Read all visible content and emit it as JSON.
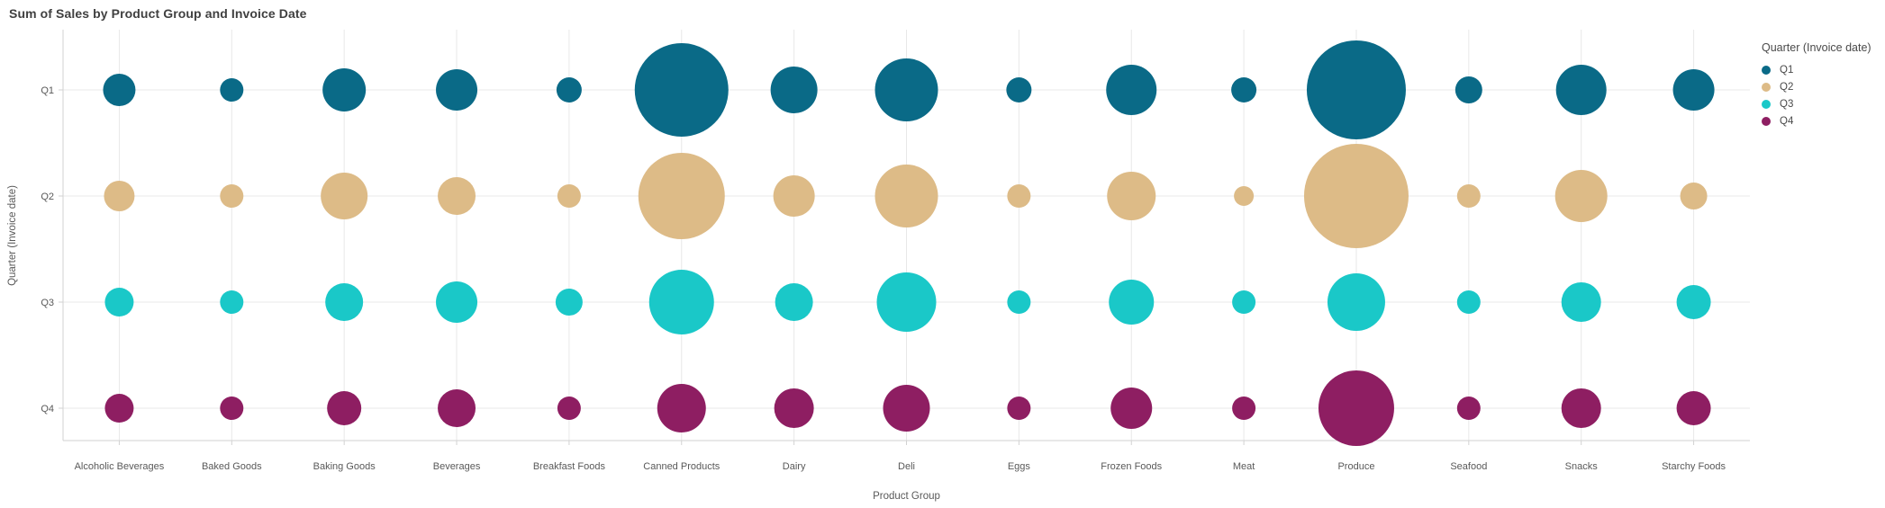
{
  "chart_data": {
    "type": "scatter",
    "subtype": "bubble",
    "title": "Sum of Sales by Product Group and Invoice Date",
    "xlabel": "Product Group",
    "ylabel": "Quarter (Invoice date)",
    "x_categories": [
      "Alcoholic Beverages",
      "Baked Goods",
      "Baking Goods",
      "Beverages",
      "Breakfast Foods",
      "Canned Products",
      "Dairy",
      "Deli",
      "Eggs",
      "Frozen Foods",
      "Meat",
      "Produce",
      "Seafood",
      "Snacks",
      "Starchy Foods"
    ],
    "y_categories": [
      "Q1",
      "Q2",
      "Q3",
      "Q4"
    ],
    "grid": true,
    "legend": {
      "title": "Quarter (Invoice date)",
      "position": "right",
      "entries": [
        "Q1",
        "Q2",
        "Q3",
        "Q4"
      ]
    },
    "size_encoding": "Sum of Sales (bubble area; numeric values not labeled on chart)",
    "series": [
      {
        "name": "Q1",
        "color": "#0a6a87",
        "bubble_radius_px": [
          18,
          13,
          24,
          23,
          14,
          52,
          26,
          35,
          14,
          28,
          14,
          55,
          15,
          28,
          23
        ]
      },
      {
        "name": "Q2",
        "color": "#ddbb87",
        "bubble_radius_px": [
          17,
          13,
          26,
          21,
          13,
          48,
          23,
          35,
          13,
          27,
          11,
          58,
          13,
          29,
          15
        ]
      },
      {
        "name": "Q3",
        "color": "#1ac8c8",
        "bubble_radius_px": [
          16,
          13,
          21,
          23,
          15,
          36,
          21,
          33,
          13,
          25,
          13,
          32,
          13,
          22,
          19
        ]
      },
      {
        "name": "Q4",
        "color": "#8e1e62",
        "bubble_radius_px": [
          16,
          13,
          19,
          21,
          13,
          27,
          22,
          26,
          13,
          23,
          13,
          42,
          13,
          22,
          19
        ]
      }
    ],
    "style": {
      "grid_color": "#e8e8e8",
      "axis_line_color": "#d2d2d2",
      "tick_label_color": "#595959",
      "title_color": "#404040",
      "background": "#ffffff"
    }
  }
}
